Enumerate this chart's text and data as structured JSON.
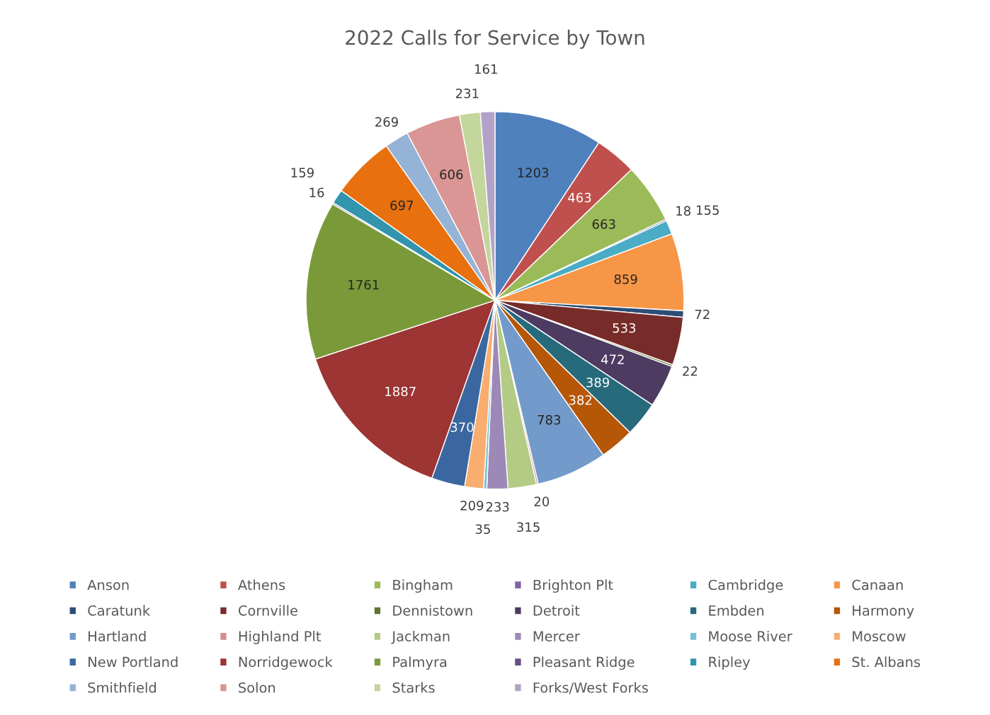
{
  "chart_data": {
    "type": "pie",
    "title": "2022 Calls for Service by Town",
    "categories": [
      "Anson",
      "Athens",
      "Bingham",
      "Brighton Plt",
      "Cambridge",
      "Canaan",
      "Caratunk",
      "Cornville",
      "Dennistown",
      "Detroit",
      "Embden",
      "Harmony",
      "Hartland",
      "Highland Plt",
      "Jackman",
      "Mercer",
      "Moose River",
      "Moscow",
      "New Portland",
      "Norridgewock",
      "Palmyra",
      "Pleasant Ridge",
      "Ripley",
      "St. Albans",
      "Smithfield",
      "Solon",
      "Starks",
      "Forks/West Forks"
    ],
    "values": [
      1203,
      463,
      663,
      18,
      155,
      859,
      72,
      533,
      22,
      472,
      389,
      382,
      783,
      20,
      315,
      233,
      35,
      209,
      370,
      1887,
      1761,
      16,
      159,
      697,
      269,
      606,
      231,
      161
    ],
    "colors": [
      "#4f81bd",
      "#c0504d",
      "#9bbb59",
      "#8064a2",
      "#4bacc6",
      "#f79646",
      "#2c4d75",
      "#772c2a",
      "#5f7530",
      "#4d3b62",
      "#276a7c",
      "#b65708",
      "#729aca",
      "#d08f8d",
      "#b3cb85",
      "#9c89b7",
      "#78c0d4",
      "#f9ad6e",
      "#3a679f",
      "#9c3533",
      "#7a9a3a",
      "#664f86",
      "#3294ad",
      "#e8700e",
      "#95b3d7",
      "#d99694",
      "#c3d69b",
      "#b3a2c7"
    ],
    "data_labels": true,
    "legend": "bottom"
  }
}
